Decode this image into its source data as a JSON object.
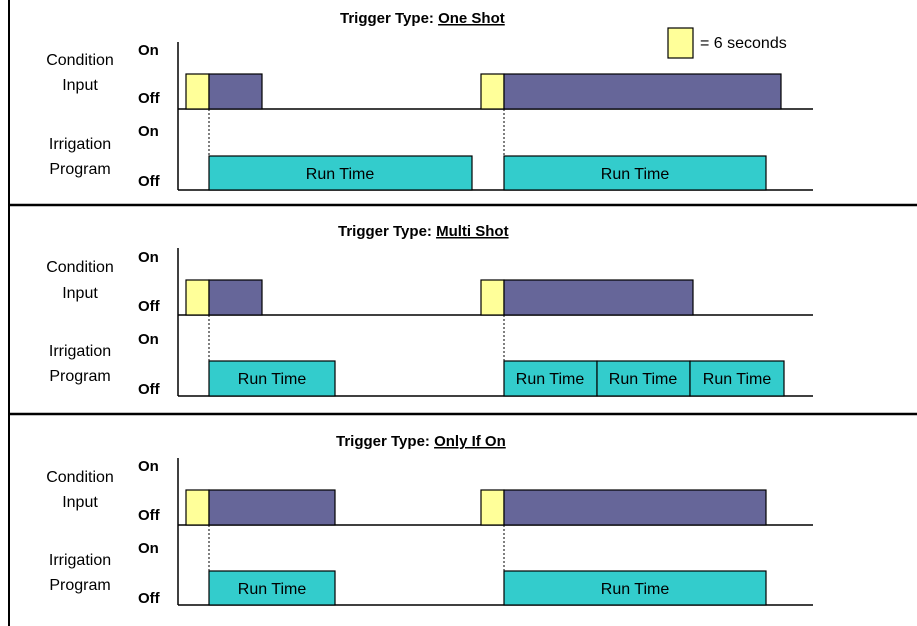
{
  "legend": {
    "label": "= 6 seconds"
  },
  "colors": {
    "trigger": "#ffff99",
    "condition": "#666699",
    "run": "#33cccc",
    "outline": "#000000"
  },
  "panels": [
    {
      "title_prefix": "Trigger Type: ",
      "title_type": "One Shot",
      "condition_label": [
        "Condition",
        "Input"
      ],
      "program_label": [
        "Irrigation",
        "Program"
      ],
      "on_label": "On",
      "off_label": "Off",
      "run_labels": [
        "Run Time",
        "Run Time"
      ]
    },
    {
      "title_prefix": "Trigger Type: ",
      "title_type": "Multi Shot",
      "condition_label": [
        "Condition",
        "Input"
      ],
      "program_label": [
        "Irrigation",
        "Program"
      ],
      "on_label": "On",
      "off_label": "Off",
      "run_labels": [
        "Run Time",
        "Run Time",
        "Run Time",
        "Run Time"
      ]
    },
    {
      "title_prefix": "Trigger Type: ",
      "title_type": "Only If On",
      "condition_label": [
        "Condition",
        "Input"
      ],
      "program_label": [
        "Irrigation",
        "Program"
      ],
      "on_label": "On",
      "off_label": "Off",
      "run_labels": [
        "Run Time",
        "Run Time"
      ]
    }
  ]
}
